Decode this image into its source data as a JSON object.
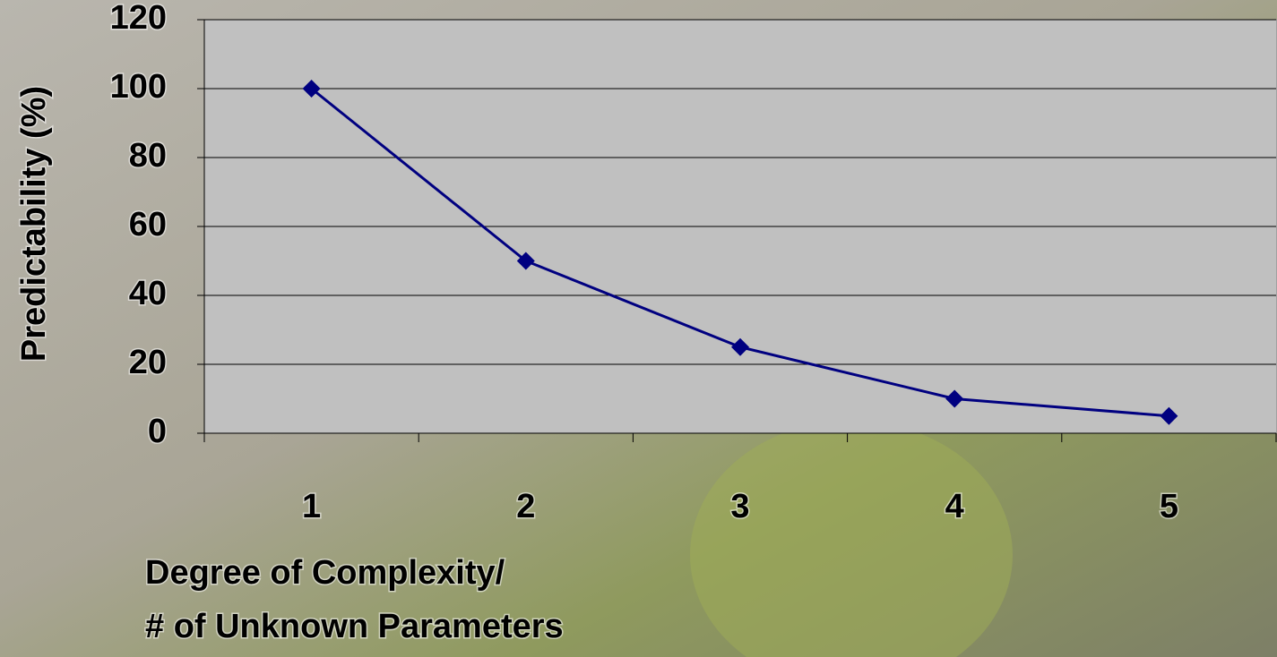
{
  "chart_data": {
    "type": "line",
    "ylabel": "Predictability (%)",
    "xlabel": [
      "Degree of Complexity/",
      "# of Unknown Parameters"
    ],
    "categories": [
      "1",
      "2",
      "3",
      "4",
      "5"
    ],
    "values": [
      100,
      50,
      25,
      10,
      5
    ],
    "color": "#000080",
    "ylim": [
      0,
      120
    ],
    "yticks": [
      0,
      20,
      40,
      60,
      80,
      100,
      120
    ],
    "grid": true
  }
}
